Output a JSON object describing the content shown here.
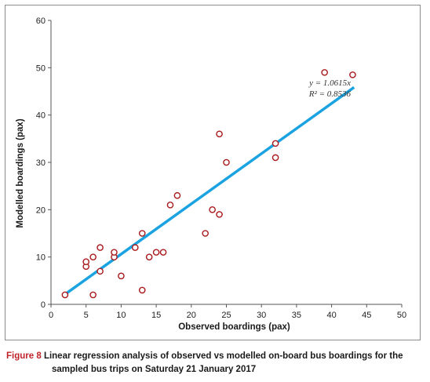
{
  "chart_data": {
    "type": "scatter",
    "xlabel": "Observed boardings (pax)",
    "ylabel": "Modelled boardings (pax)",
    "xlim": [
      0,
      50
    ],
    "ylim": [
      0,
      60
    ],
    "x_ticks": [
      0,
      5,
      10,
      15,
      20,
      25,
      30,
      35,
      40,
      45,
      50
    ],
    "y_ticks": [
      0,
      10,
      20,
      30,
      40,
      50,
      60
    ],
    "grid": false,
    "points": [
      {
        "x": 2,
        "y": 2
      },
      {
        "x": 5,
        "y": 8
      },
      {
        "x": 5,
        "y": 9
      },
      {
        "x": 6,
        "y": 2
      },
      {
        "x": 6,
        "y": 10
      },
      {
        "x": 7,
        "y": 7
      },
      {
        "x": 7,
        "y": 12
      },
      {
        "x": 9,
        "y": 10
      },
      {
        "x": 9,
        "y": 11
      },
      {
        "x": 10,
        "y": 6
      },
      {
        "x": 12,
        "y": 12
      },
      {
        "x": 13,
        "y": 3
      },
      {
        "x": 13,
        "y": 15
      },
      {
        "x": 14,
        "y": 10
      },
      {
        "x": 15,
        "y": 11
      },
      {
        "x": 16,
        "y": 11
      },
      {
        "x": 17,
        "y": 21
      },
      {
        "x": 18,
        "y": 23
      },
      {
        "x": 22,
        "y": 15
      },
      {
        "x": 23,
        "y": 20
      },
      {
        "x": 24,
        "y": 19
      },
      {
        "x": 24,
        "y": 36
      },
      {
        "x": 25,
        "y": 30
      },
      {
        "x": 32,
        "y": 31
      },
      {
        "x": 32,
        "y": 34
      },
      {
        "x": 39,
        "y": 49
      },
      {
        "x": 43,
        "y": 48.5
      }
    ],
    "regression": {
      "slope": 1.0615,
      "x_range": [
        2,
        43.2
      ],
      "equation": "y = 1.0615x",
      "r2_label": "R² = 0.8536"
    },
    "colors": {
      "marker": "#a8191c",
      "trendline": "#1aa3e0",
      "axis": "#555555"
    }
  },
  "caption": {
    "label": "Figure 8",
    "text_line1": "Linear regression analysis of observed vs modelled on-board bus boardings for the",
    "text_line2": "sampled bus trips on Saturday 21 January 2017"
  }
}
